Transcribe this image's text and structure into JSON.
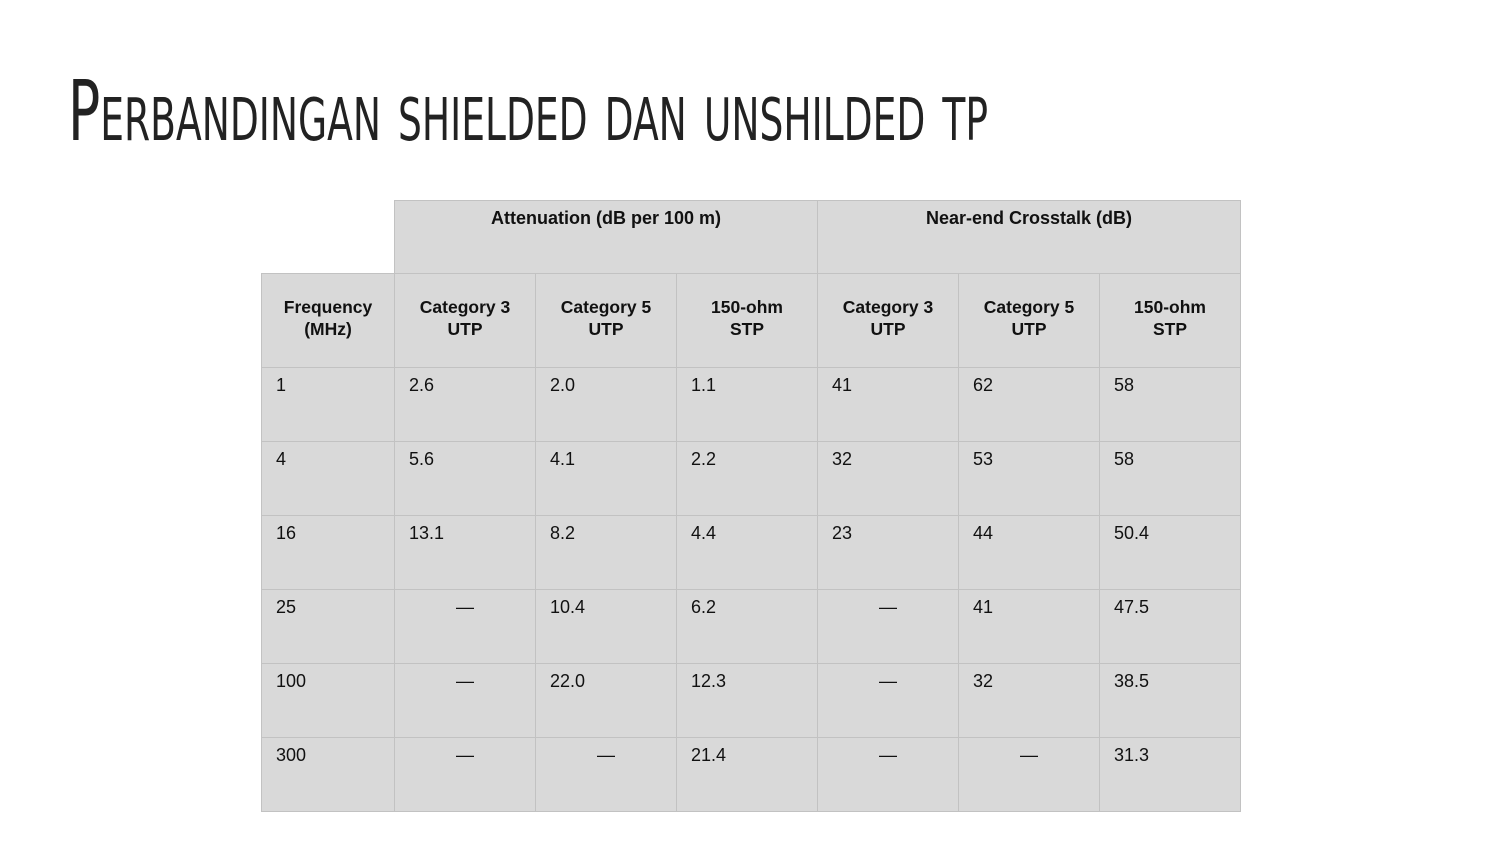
{
  "title": "Perbandingan shielded dan unshilded tp",
  "table": {
    "header_groups": [
      "Attenuation (dB per 100 m)",
      "Near-end Crosstalk (dB)"
    ],
    "columns": [
      "Frequency (MHz)",
      "Category 3 UTP",
      "Category 5 UTP",
      "150-ohm STP",
      "Category 3 UTP",
      "Category 5 UTP",
      "150-ohm STP"
    ],
    "rows": [
      [
        "1",
        "2.6",
        "2.0",
        "1.1",
        "41",
        "62",
        "58"
      ],
      [
        "4",
        "5.6",
        "4.1",
        "2.2",
        "32",
        "53",
        "58"
      ],
      [
        "16",
        "13.1",
        "8.2",
        "4.4",
        "23",
        "44",
        "50.4"
      ],
      [
        "25",
        "—",
        "10.4",
        "6.2",
        "—",
        "41",
        "47.5"
      ],
      [
        "100",
        "—",
        "22.0",
        "12.3",
        "—",
        "32",
        "38.5"
      ],
      [
        "300",
        "—",
        "—",
        "21.4",
        "—",
        "—",
        "31.3"
      ]
    ]
  }
}
